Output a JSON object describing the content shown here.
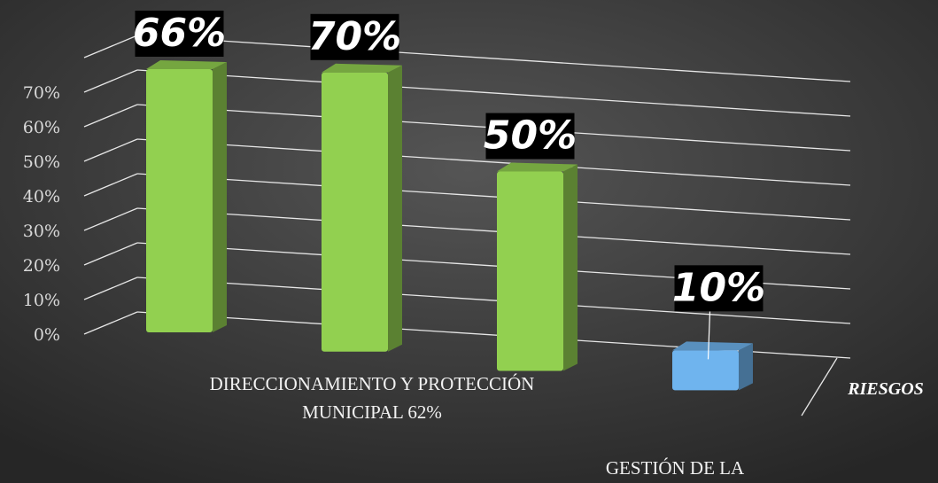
{
  "chart_data": {
    "type": "bar",
    "categories": [
      null,
      null,
      null,
      null
    ],
    "values": [
      66,
      70,
      50,
      10
    ],
    "value_labels": [
      "66%",
      "70%",
      "50%",
      "10%"
    ],
    "colors": [
      "#92d050",
      "#92d050",
      "#92d050",
      "#6fb4ee"
    ],
    "ylim": [
      0,
      80
    ],
    "yticks": [
      {
        "value": 0,
        "label": "0%"
      },
      {
        "value": 10,
        "label": "10%"
      },
      {
        "value": 20,
        "label": "20%"
      },
      {
        "value": 30,
        "label": "30%"
      },
      {
        "value": 40,
        "label": "40%"
      },
      {
        "value": 50,
        "label": "50%"
      },
      {
        "value": 60,
        "label": "60%"
      },
      {
        "value": 70,
        "label": "70%"
      }
    ],
    "grid": true,
    "annotations": [
      "DIRECCIONAMIENTO  Y PROTECCIÓN",
      "MUNICIPAL  62%",
      "GESTIÓN DE LA",
      "RIESGOS"
    ]
  }
}
